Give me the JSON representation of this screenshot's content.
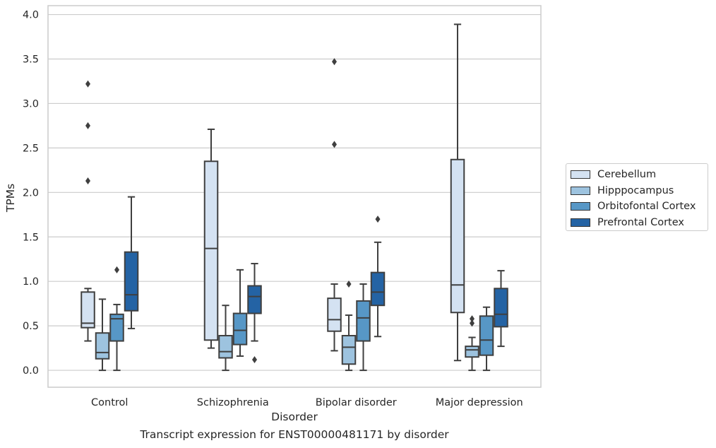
{
  "caption": "Transcript expression for ENST00000481171 by disorder",
  "chart_data": {
    "type": "boxplot",
    "xlabel": "Disorder",
    "ylabel": "TPMs",
    "ylim": [
      -0.19,
      4.1
    ],
    "yticks": [
      "0.0",
      "0.5",
      "1.0",
      "1.5",
      "2.0",
      "2.5",
      "3.0",
      "3.5",
      "4.0"
    ],
    "grid": true,
    "legend_position": "right",
    "categories": [
      "Control",
      "Schizophrenia",
      "Bipolar disorder",
      "Major depression"
    ],
    "series": [
      {
        "name": "Cerebellum",
        "color": "#d4e2f2",
        "boxes": [
          {
            "whislo": 0.33,
            "q1": 0.48,
            "med": 0.53,
            "q3": 0.88,
            "whishi": 0.92,
            "fliers": [
              2.13,
              2.75,
              3.22
            ]
          },
          {
            "whislo": 0.25,
            "q1": 0.34,
            "med": 1.37,
            "q3": 2.35,
            "whishi": 2.71,
            "fliers": []
          },
          {
            "whislo": 0.22,
            "q1": 0.44,
            "med": 0.57,
            "q3": 0.81,
            "whishi": 0.97,
            "fliers": [
              2.54,
              3.47
            ]
          },
          {
            "whislo": 0.11,
            "q1": 0.65,
            "med": 0.96,
            "q3": 2.37,
            "whishi": 3.89,
            "fliers": []
          }
        ]
      },
      {
        "name": "Hipppocampus",
        "color": "#9dc3df",
        "boxes": [
          {
            "whislo": 0.0,
            "q1": 0.13,
            "med": 0.2,
            "q3": 0.42,
            "whishi": 0.8,
            "fliers": []
          },
          {
            "whislo": 0.0,
            "q1": 0.14,
            "med": 0.21,
            "q3": 0.39,
            "whishi": 0.73,
            "fliers": []
          },
          {
            "whislo": 0.0,
            "q1": 0.07,
            "med": 0.26,
            "q3": 0.39,
            "whishi": 0.62,
            "fliers": [
              0.97
            ]
          },
          {
            "whislo": 0.0,
            "q1": 0.15,
            "med": 0.23,
            "q3": 0.27,
            "whishi": 0.37,
            "fliers": [
              0.53,
              0.58
            ]
          }
        ]
      },
      {
        "name": "Orbitofontal Cortex",
        "color": "#5797c6",
        "boxes": [
          {
            "whislo": 0.0,
            "q1": 0.33,
            "med": 0.58,
            "q3": 0.63,
            "whishi": 0.74,
            "fliers": [
              1.13
            ]
          },
          {
            "whislo": 0.16,
            "q1": 0.29,
            "med": 0.45,
            "q3": 0.64,
            "whishi": 1.13,
            "fliers": []
          },
          {
            "whislo": 0.0,
            "q1": 0.33,
            "med": 0.59,
            "q3": 0.78,
            "whishi": 0.97,
            "fliers": []
          },
          {
            "whislo": 0.0,
            "q1": 0.17,
            "med": 0.34,
            "q3": 0.61,
            "whishi": 0.71,
            "fliers": []
          }
        ]
      },
      {
        "name": "Prefrontal Cortex",
        "color": "#2463a4",
        "boxes": [
          {
            "whislo": 0.47,
            "q1": 0.67,
            "med": 0.85,
            "q3": 1.33,
            "whishi": 1.95,
            "fliers": []
          },
          {
            "whislo": 0.33,
            "q1": 0.64,
            "med": 0.83,
            "q3": 0.95,
            "whishi": 1.2,
            "fliers": [
              0.12
            ]
          },
          {
            "whislo": 0.38,
            "q1": 0.73,
            "med": 0.88,
            "q3": 1.1,
            "whishi": 1.44,
            "fliers": [
              1.7
            ]
          },
          {
            "whislo": 0.27,
            "q1": 0.49,
            "med": 0.63,
            "q3": 0.92,
            "whishi": 1.12,
            "fliers": []
          }
        ]
      }
    ]
  }
}
